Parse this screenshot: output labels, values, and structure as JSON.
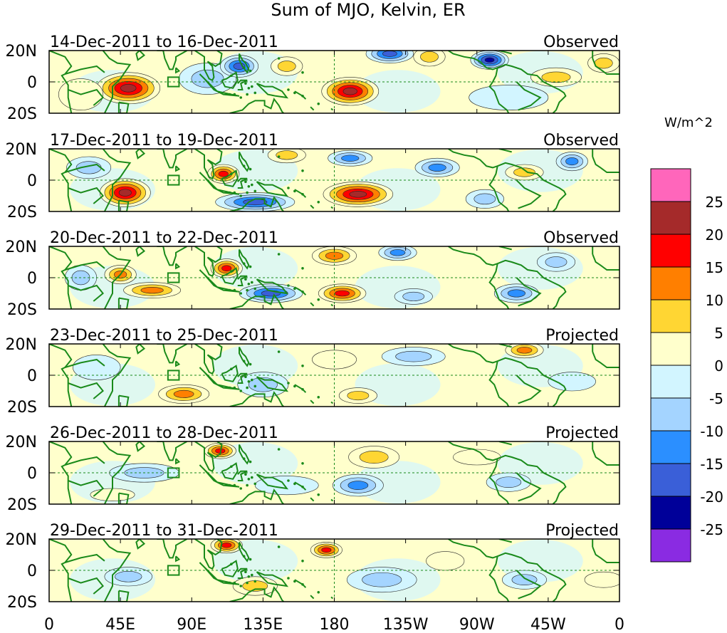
{
  "chart_data": {
    "type": "heatmap",
    "title": "Sum of MJO, Kelvin, ER",
    "units_label": "W/m^2",
    "x_ticks": [
      "0",
      "45E",
      "90E",
      "135E",
      "180",
      "135W",
      "90W",
      "45W",
      "0"
    ],
    "y_ticks": [
      "20N",
      "0",
      "20S"
    ],
    "x_range_deg": [
      0,
      360
    ],
    "y_range_deg": [
      -20,
      20
    ],
    "colorbar": {
      "tick_labels": [
        "25",
        "20",
        "15",
        "10",
        "5",
        "0",
        "-5",
        "-10",
        "-15",
        "-20",
        "-25"
      ],
      "colors": [
        "#ff66bb",
        "#a52a2a",
        "#ff0000",
        "#ff7f00",
        "#ffd633",
        "#ffffcc",
        "#d2f5ff",
        "#a4d4ff",
        "#2b8fff",
        "#3a5fd8",
        "#000099",
        "#8a2be2"
      ]
    },
    "panels": [
      {
        "date_label": "14-Dec-2011 to 16-Dec-2011",
        "status": "Observed",
        "blobs": [
          {
            "lon": 50,
            "lat": -4,
            "rlon": 20,
            "rlat": 10,
            "val": 27
          },
          {
            "lon": 100,
            "lat": 2,
            "rlon": 18,
            "rlat": 10,
            "val": -14
          },
          {
            "lon": 120,
            "lat": 10,
            "rlon": 12,
            "rlat": 7,
            "val": -20
          },
          {
            "lon": 150,
            "lat": 10,
            "rlon": 10,
            "rlat": 6,
            "val": 13
          },
          {
            "lon": 190,
            "lat": -6,
            "rlon": 18,
            "rlat": 9,
            "val": 26
          },
          {
            "lon": 215,
            "lat": 18,
            "rlon": 15,
            "rlat": 6,
            "val": -24
          },
          {
            "lon": 240,
            "lat": 16,
            "rlon": 10,
            "rlat": 6,
            "val": 12
          },
          {
            "lon": 278,
            "lat": 14,
            "rlon": 12,
            "rlat": 6,
            "val": -25
          },
          {
            "lon": 320,
            "lat": 3,
            "rlon": 16,
            "rlat": 6,
            "val": 11
          },
          {
            "lon": 350,
            "lat": 12,
            "rlon": 10,
            "rlat": 6,
            "val": 13
          },
          {
            "lon": 20,
            "lat": -8,
            "rlon": 14,
            "rlat": 10,
            "val": 6
          },
          {
            "lon": 290,
            "lat": -10,
            "rlon": 25,
            "rlat": 8,
            "val": -6
          }
        ]
      },
      {
        "date_label": "17-Dec-2011 to 19-Dec-2011",
        "status": "Observed",
        "blobs": [
          {
            "lon": 48,
            "lat": -8,
            "rlon": 16,
            "rlat": 9,
            "val": 27
          },
          {
            "lon": 25,
            "lat": 8,
            "rlon": 14,
            "rlat": 7,
            "val": -12
          },
          {
            "lon": 110,
            "lat": 4,
            "rlon": 10,
            "rlat": 6,
            "val": 22
          },
          {
            "lon": 150,
            "lat": 16,
            "rlon": 12,
            "rlat": 5,
            "val": 14
          },
          {
            "lon": 130,
            "lat": -14,
            "rlon": 25,
            "rlat": 6,
            "val": -24
          },
          {
            "lon": 195,
            "lat": -9,
            "rlon": 22,
            "rlat": 8,
            "val": 27
          },
          {
            "lon": 190,
            "lat": 14,
            "rlon": 14,
            "rlat": 5,
            "val": -16
          },
          {
            "lon": 245,
            "lat": 8,
            "rlon": 14,
            "rlat": 6,
            "val": -15
          },
          {
            "lon": 300,
            "lat": 5,
            "rlon": 12,
            "rlat": 5,
            "val": 14
          },
          {
            "lon": 330,
            "lat": 12,
            "rlon": 10,
            "rlat": 6,
            "val": -18
          },
          {
            "lon": 275,
            "lat": -12,
            "rlon": 12,
            "rlat": 6,
            "val": -12
          }
        ]
      },
      {
        "date_label": "20-Dec-2011 to 22-Dec-2011",
        "status": "Observed",
        "blobs": [
          {
            "lon": 45,
            "lat": 2,
            "rlon": 10,
            "rlat": 6,
            "val": 18
          },
          {
            "lon": 65,
            "lat": -8,
            "rlon": 18,
            "rlat": 5,
            "val": 16
          },
          {
            "lon": 20,
            "lat": 0,
            "rlon": 10,
            "rlat": 8,
            "val": -14
          },
          {
            "lon": 112,
            "lat": 6,
            "rlon": 10,
            "rlat": 6,
            "val": 24
          },
          {
            "lon": 140,
            "lat": -10,
            "rlon": 20,
            "rlat": 6,
            "val": -24
          },
          {
            "lon": 180,
            "lat": 14,
            "rlon": 14,
            "rlat": 6,
            "val": 16
          },
          {
            "lon": 185,
            "lat": -10,
            "rlon": 15,
            "rlat": 6,
            "val": 24
          },
          {
            "lon": 220,
            "lat": 16,
            "rlon": 12,
            "rlat": 5,
            "val": -18
          },
          {
            "lon": 230,
            "lat": -12,
            "rlon": 12,
            "rlat": 5,
            "val": -14
          },
          {
            "lon": 295,
            "lat": -10,
            "rlon": 14,
            "rlat": 6,
            "val": -18
          },
          {
            "lon": 320,
            "lat": 10,
            "rlon": 12,
            "rlat": 6,
            "val": -12
          }
        ]
      },
      {
        "date_label": "23-Dec-2011 to 25-Dec-2011",
        "status": "Projected",
        "blobs": [
          {
            "lon": 85,
            "lat": -12,
            "rlon": 16,
            "rlat": 6,
            "val": 18
          },
          {
            "lon": 135,
            "lat": -6,
            "rlon": 16,
            "rlat": 8,
            "val": -12
          },
          {
            "lon": 180,
            "lat": 10,
            "rlon": 14,
            "rlat": 6,
            "val": 9
          },
          {
            "lon": 195,
            "lat": -13,
            "rlon": 12,
            "rlat": 5,
            "val": 12
          },
          {
            "lon": 230,
            "lat": 12,
            "rlon": 20,
            "rlat": 6,
            "val": -12
          },
          {
            "lon": 300,
            "lat": 16,
            "rlon": 12,
            "rlat": 5,
            "val": 16
          },
          {
            "lon": 30,
            "lat": 5,
            "rlon": 15,
            "rlat": 8,
            "val": -8
          },
          {
            "lon": 330,
            "lat": -4,
            "rlon": 15,
            "rlat": 6,
            "val": -6
          }
        ]
      },
      {
        "date_label": "26-Dec-2011 to 28-Dec-2011",
        "status": "Projected",
        "blobs": [
          {
            "lon": 108,
            "lat": 14,
            "rlon": 10,
            "rlat": 5,
            "val": 22
          },
          {
            "lon": 205,
            "lat": 10,
            "rlon": 16,
            "rlat": 7,
            "val": 14
          },
          {
            "lon": 195,
            "lat": -8,
            "rlon": 16,
            "rlat": 7,
            "val": -16
          },
          {
            "lon": 60,
            "lat": 0,
            "rlon": 22,
            "rlat": 6,
            "val": -10
          },
          {
            "lon": 150,
            "lat": -8,
            "rlon": 20,
            "rlat": 6,
            "val": -9
          },
          {
            "lon": 290,
            "lat": -6,
            "rlon": 14,
            "rlat": 6,
            "val": -10
          },
          {
            "lon": 270,
            "lat": 10,
            "rlon": 15,
            "rlat": 5,
            "val": 9
          },
          {
            "lon": 40,
            "lat": -14,
            "rlon": 14,
            "rlat": 4,
            "val": 7
          }
        ]
      },
      {
        "date_label": "29-Dec-2011 to 31-Dec-2011",
        "status": "Projected",
        "blobs": [
          {
            "lon": 112,
            "lat": 16,
            "rlon": 10,
            "rlat": 5,
            "val": 20
          },
          {
            "lon": 175,
            "lat": 13,
            "rlon": 10,
            "rlat": 5,
            "val": 22
          },
          {
            "lon": 210,
            "lat": -6,
            "rlon": 22,
            "rlat": 8,
            "val": -14
          },
          {
            "lon": 130,
            "lat": -10,
            "rlon": 14,
            "rlat": 6,
            "val": 14
          },
          {
            "lon": 50,
            "lat": -4,
            "rlon": 15,
            "rlat": 6,
            "val": -12
          },
          {
            "lon": 250,
            "lat": 6,
            "rlon": 12,
            "rlat": 6,
            "val": 8
          },
          {
            "lon": 300,
            "lat": -6,
            "rlon": 14,
            "rlat": 6,
            "val": -10
          },
          {
            "lon": 350,
            "lat": -6,
            "rlon": 12,
            "rlat": 5,
            "val": 8
          }
        ]
      }
    ]
  }
}
